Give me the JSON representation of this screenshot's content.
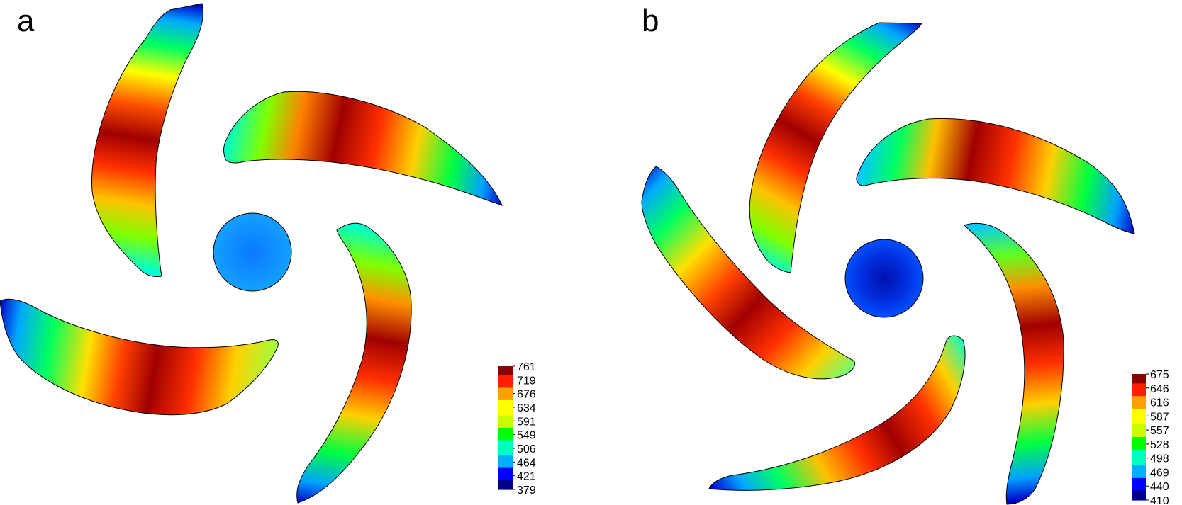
{
  "colors": {
    "scale": [
      "#00008b",
      "#0000ff",
      "#00b0ff",
      "#00ffc0",
      "#00ff00",
      "#c8ff00",
      "#ffff00",
      "#ffa000",
      "#ff2000",
      "#8b0000"
    ],
    "outline": "#000000",
    "background": "#ffffff"
  },
  "panels": [
    {
      "letter": "a",
      "colorbar_labels": [
        "761",
        "719",
        "676",
        "634",
        "591",
        "549",
        "506",
        "464",
        "421",
        "379"
      ]
    },
    {
      "letter": "b",
      "colorbar_labels": [
        "675",
        "646",
        "616",
        "587",
        "557",
        "528",
        "498",
        "469",
        "440",
        "410"
      ]
    }
  ]
}
